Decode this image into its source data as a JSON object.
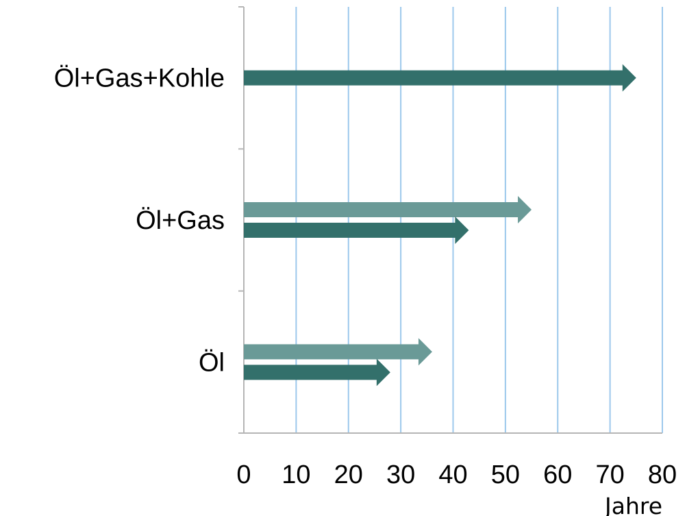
{
  "chart_data": {
    "type": "bar",
    "orientation": "horizontal",
    "categories": [
      "Öl+Gas+Kohle",
      "Öl+Gas",
      "Öl"
    ],
    "series": [
      {
        "color": "#6a9a97",
        "values": [
          null,
          55,
          36
        ]
      },
      {
        "color": "#33706b",
        "values": [
          75,
          43,
          28
        ]
      }
    ],
    "xlim": [
      0,
      80
    ],
    "xticks": [
      "0",
      "10",
      "20",
      "30",
      "40",
      "50",
      "60",
      "70",
      "80"
    ],
    "xlabel": "Jahre",
    "ylabel": "",
    "title": "",
    "grid": true,
    "grid_color": "#9cc8ec",
    "axis_color": "#b5b5b5",
    "bar_shape": "arrow",
    "legend": "none"
  }
}
